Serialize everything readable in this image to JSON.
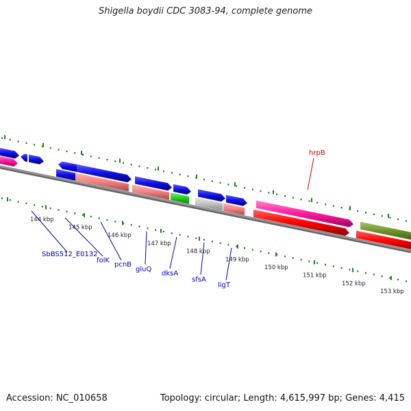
{
  "title": "Shigella boydii CDC 3083-94, complete genome",
  "footer": {
    "accession": "Accession: NC_010658",
    "summary": "Topology: circular; Length: 4,615,997 bp; Genes: 4,415"
  },
  "colors": {
    "backbone": "#7f7f7f",
    "tick": "#1a7f1a",
    "cds_blue": "#1010e0",
    "rna_pink": "#f08080",
    "magenta": "#ff1a9c",
    "red": "#ff0000",
    "olive": "#6b8e23",
    "green": "#22cc22",
    "grey": "#c0c0c0",
    "label_blue": "#0000aa",
    "label_red": "#cc0000"
  },
  "scale_labels": [
    {
      "text": "144 kbp",
      "kbp": 144
    },
    {
      "text": "145 kbp",
      "kbp": 145
    },
    {
      "text": "146 kbp",
      "kbp": 146
    },
    {
      "text": "147 kbp",
      "kbp": 147
    },
    {
      "text": "148 kbp",
      "kbp": 148
    },
    {
      "text": "149 kbp",
      "kbp": 149
    },
    {
      "text": "150 kbp",
      "kbp": 150
    },
    {
      "text": "151 kbp",
      "kbp": 151
    },
    {
      "text": "152 kbp",
      "kbp": 152
    },
    {
      "text": "153 kbp",
      "kbp": 153
    }
  ],
  "gene_labels": [
    {
      "name": "SbBS512_E0132",
      "color": "label_blue"
    },
    {
      "name": "folK",
      "color": "label_blue"
    },
    {
      "name": "pcnB",
      "color": "label_blue"
    },
    {
      "name": "gluQ",
      "color": "label_blue"
    },
    {
      "name": "dksA",
      "color": "label_blue"
    },
    {
      "name": "sfsA",
      "color": "label_blue"
    },
    {
      "name": "ligT",
      "color": "label_blue"
    },
    {
      "name": "hrpB",
      "color": "label_red"
    }
  ]
}
